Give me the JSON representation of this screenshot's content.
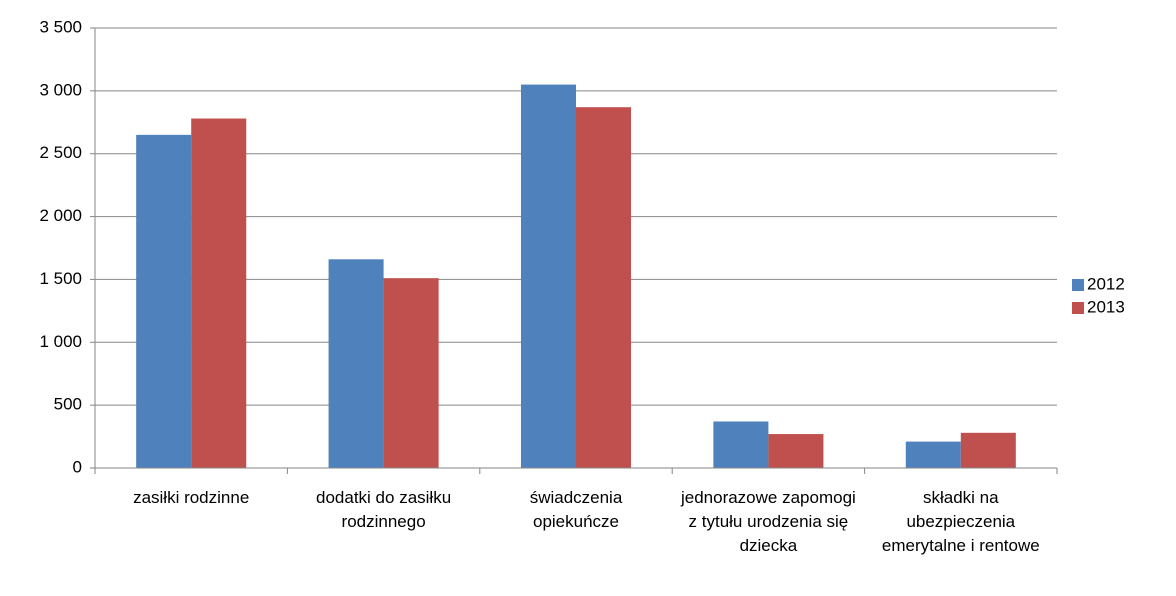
{
  "chart_data": {
    "type": "bar",
    "categories": [
      "zasiłki rodzinne",
      "dodatki do zasiłku rodzinnego",
      "świadczenia opiekuńcze",
      "jednorazowe zapomogi z tytułu urodzenia się dziecka",
      "składki na ubezpieczenia emerytalne i rentowe"
    ],
    "series": [
      {
        "name": "2012",
        "color": "#4f81bd",
        "values": [
          2650,
          1660,
          3050,
          370,
          210
        ]
      },
      {
        "name": "2013",
        "color": "#c0504d",
        "values": [
          2780,
          1510,
          2870,
          270,
          280
        ]
      }
    ],
    "ylim": [
      0,
      3500
    ],
    "yticks": [
      0,
      500,
      {
        "value": 1000,
        "label": "1 000"
      },
      {
        "value": 1500,
        "label": "1 500"
      },
      {
        "value": 2000,
        "label": "2 000"
      },
      {
        "value": 2500,
        "label": "2 500"
      },
      {
        "value": 3000,
        "label": "3 000"
      },
      {
        "value": 3500,
        "label": "3 500"
      }
    ],
    "grid": true,
    "legend": "right"
  }
}
